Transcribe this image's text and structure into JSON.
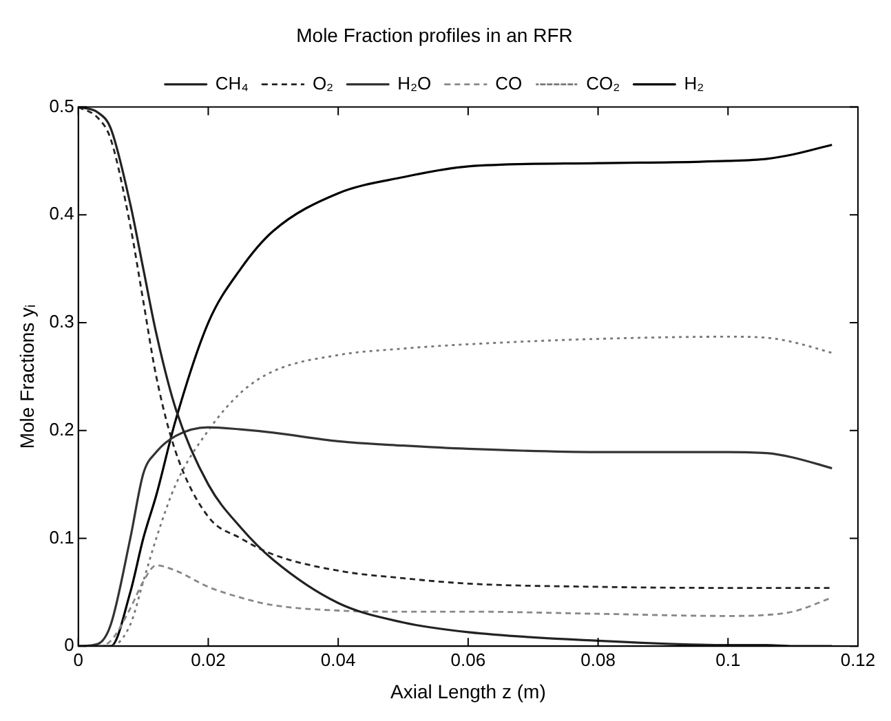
{
  "chart_data": {
    "type": "line",
    "title": "Mole Fraction profiles in an RFR",
    "xlabel": "Axial Length z (m)",
    "ylabel": "Mole Fractions yᵢ",
    "xlim": [
      0,
      0.12
    ],
    "xticks": [
      0,
      0.02,
      0.04,
      0.06,
      0.08,
      0.1,
      0.12
    ],
    "ylim": [
      0,
      0.5
    ],
    "yticks": [
      0,
      0.1,
      0.2,
      0.3,
      0.4,
      0.5
    ],
    "grid": false,
    "legend": "top",
    "marker": "none",
    "x": [
      0,
      0.003,
      0.005,
      0.008,
      0.01,
      0.012,
      0.015,
      0.02,
      0.025,
      0.03,
      0.04,
      0.05,
      0.06,
      0.08,
      0.1,
      0.106,
      0.11,
      0.116
    ],
    "series": [
      {
        "name": "CH₄",
        "color": "#222222",
        "line_style": "solid",
        "values": [
          0.5,
          0.495,
          0.48,
          0.41,
          0.35,
          0.29,
          0.22,
          0.15,
          0.11,
          0.08,
          0.04,
          0.022,
          0.013,
          0.005,
          0.001,
          0.001,
          0.0,
          0.0
        ]
      },
      {
        "name": "O₂",
        "color": "#222222",
        "line_style": "dashed",
        "values": [
          0.5,
          0.49,
          0.47,
          0.39,
          0.32,
          0.25,
          0.18,
          0.12,
          0.1,
          0.085,
          0.07,
          0.063,
          0.058,
          0.055,
          0.054,
          0.054,
          0.054,
          0.054
        ]
      },
      {
        "name": "H₂O",
        "color": "#333333",
        "line_style": "solid",
        "values": [
          0,
          0.002,
          0.02,
          0.1,
          0.16,
          0.18,
          0.195,
          0.203,
          0.201,
          0.198,
          0.19,
          0.186,
          0.183,
          0.18,
          0.18,
          0.179,
          0.175,
          0.165
        ]
      },
      {
        "name": "CO",
        "color": "#888888",
        "line_style": "dashed",
        "values": [
          0,
          0.0,
          0.005,
          0.035,
          0.06,
          0.075,
          0.07,
          0.055,
          0.045,
          0.038,
          0.033,
          0.032,
          0.032,
          0.03,
          0.028,
          0.029,
          0.032,
          0.045
        ]
      },
      {
        "name": "CO₂",
        "color": "#777777",
        "line_style": "dotted",
        "values": [
          0,
          0,
          0,
          0.02,
          0.06,
          0.1,
          0.15,
          0.2,
          0.235,
          0.255,
          0.27,
          0.276,
          0.28,
          0.285,
          0.287,
          0.286,
          0.282,
          0.272
        ]
      },
      {
        "name": "H₂",
        "color": "#000000",
        "line_style": "solid",
        "values": [
          0,
          0,
          0,
          0.05,
          0.1,
          0.14,
          0.21,
          0.3,
          0.35,
          0.385,
          0.42,
          0.435,
          0.445,
          0.448,
          0.45,
          0.452,
          0.456,
          0.465
        ]
      }
    ]
  }
}
